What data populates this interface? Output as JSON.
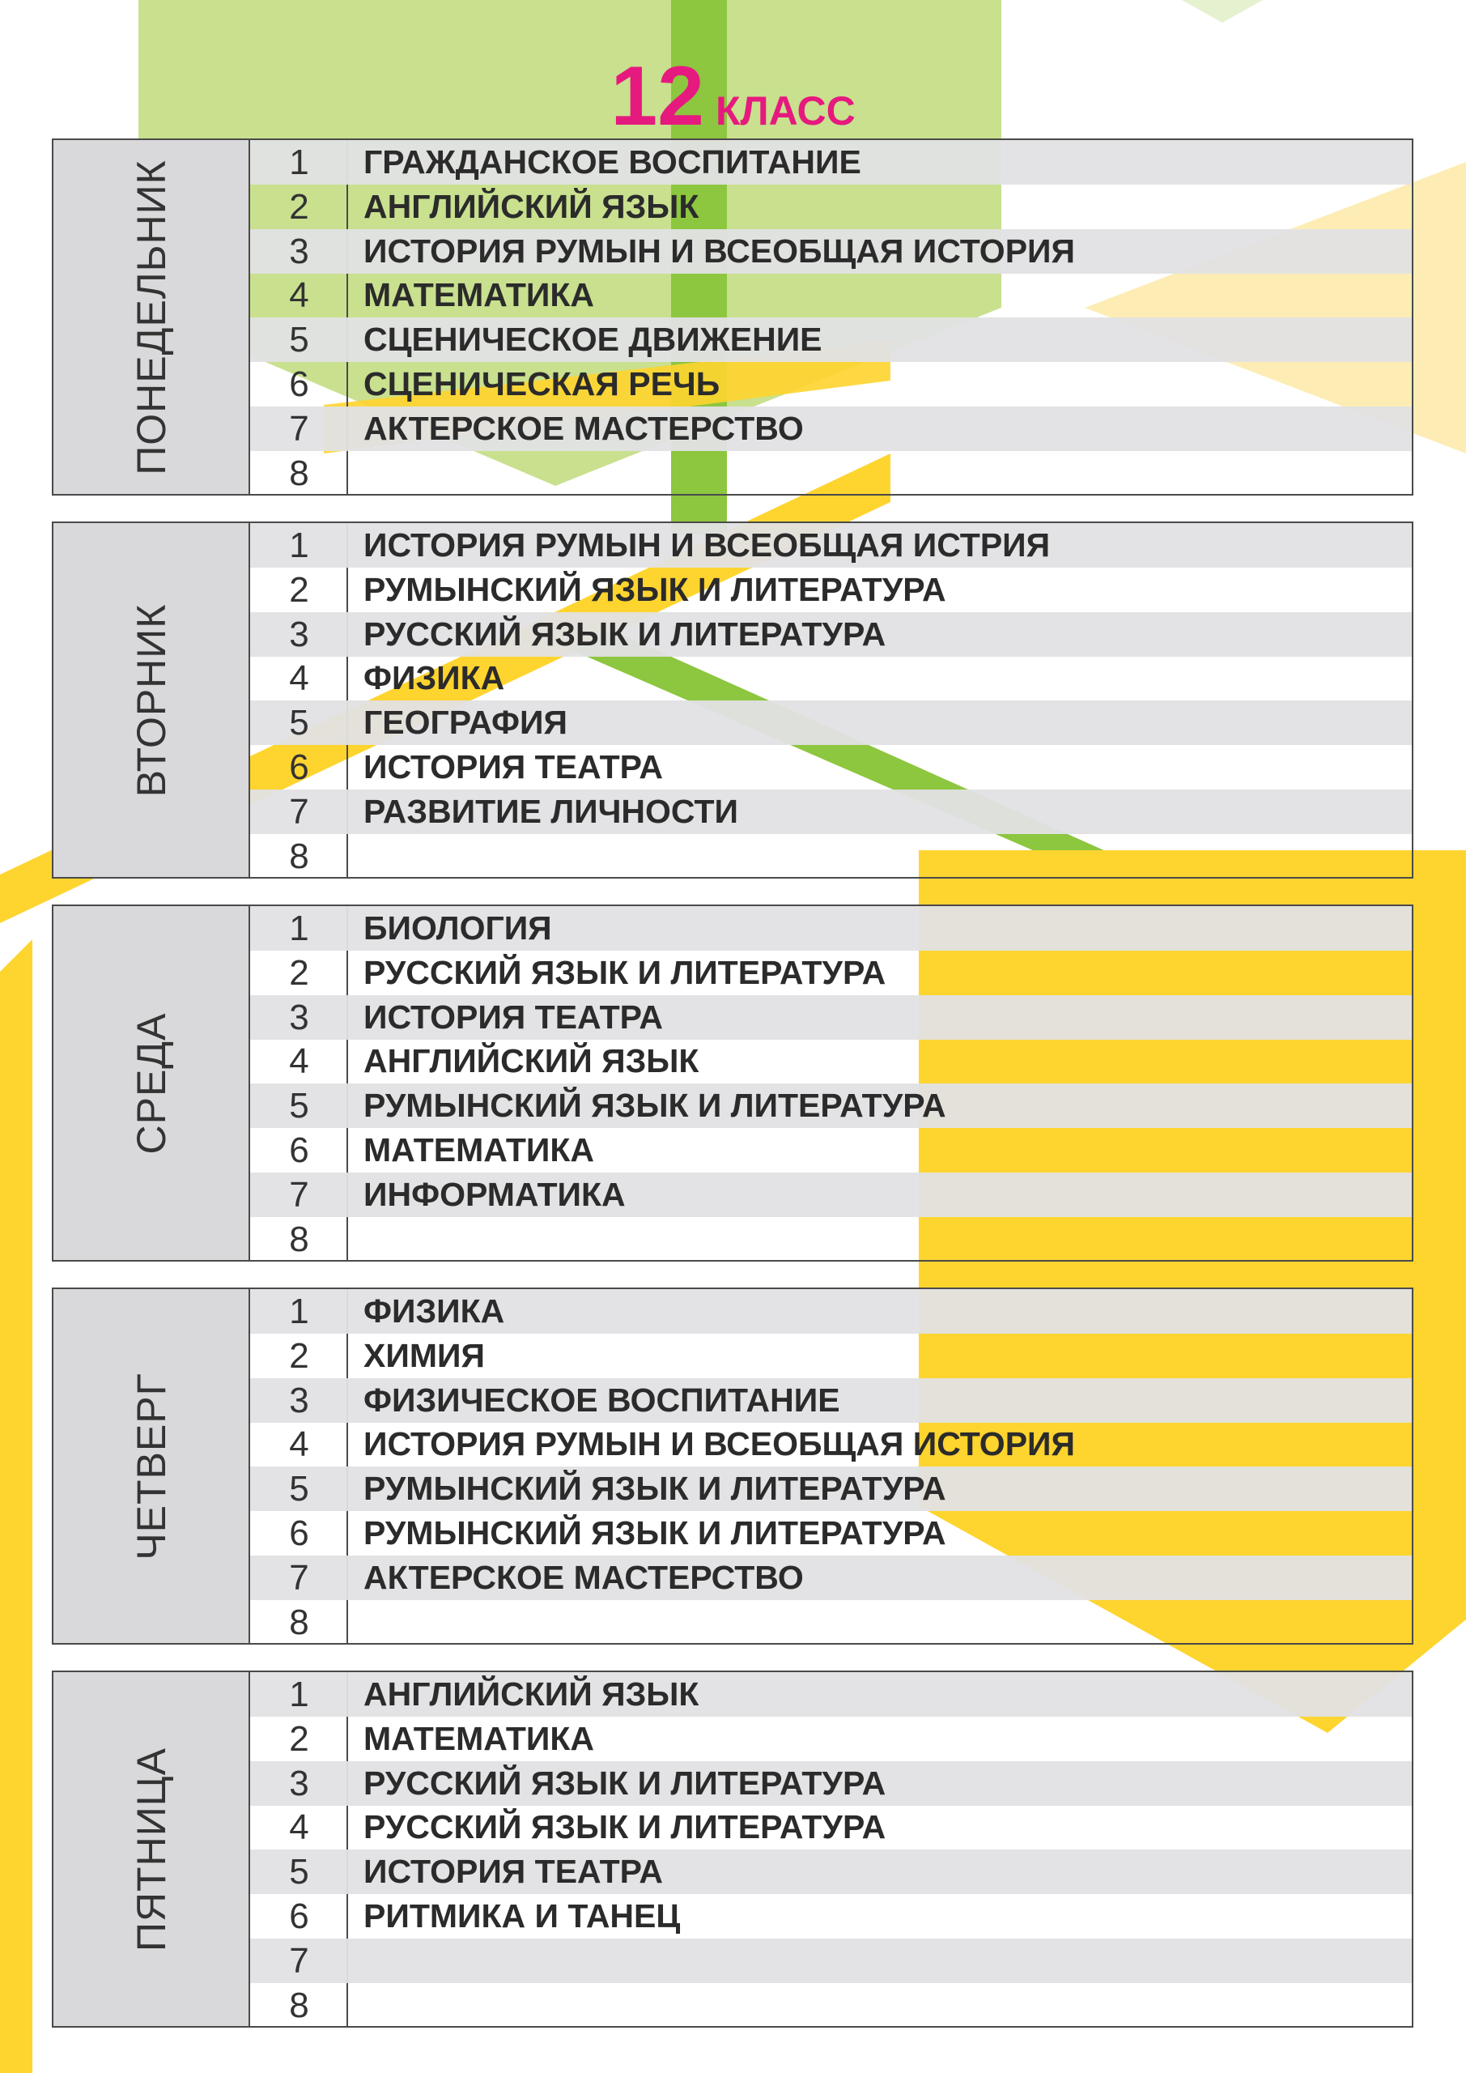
{
  "header": {
    "number": "12",
    "label": "КЛАСС"
  },
  "days": [
    {
      "name": "ПОНЕДЕЛЬНИК",
      "lessons": [
        {
          "num": 1,
          "subject": "ГРАЖДАНСКОЕ ВОСПИТАНИЕ"
        },
        {
          "num": 2,
          "subject": "АНГЛИЙСКИЙ ЯЗЫК"
        },
        {
          "num": 3,
          "subject": "ИСТОРИЯ РУМЫН И ВСЕОБЩАЯ ИСТОРИЯ"
        },
        {
          "num": 4,
          "subject": "МАТЕМАТИКА"
        },
        {
          "num": 5,
          "subject": "СЦЕНИЧЕСКОЕ ДВИЖЕНИЕ"
        },
        {
          "num": 6,
          "subject": "СЦЕНИЧЕСКАЯ РЕЧЬ"
        },
        {
          "num": 7,
          "subject": "АКТЕРСКОЕ МАСТЕРСТВО"
        },
        {
          "num": 8
        }
      ]
    },
    {
      "name": "ВТОРНИК",
      "lessons": [
        {
          "num": 1,
          "subject": "ИСТОРИЯ РУМЫН И ВСЕОБЩАЯ ИСТРИЯ"
        },
        {
          "num": 2,
          "subject": "РУМЫНСКИЙ ЯЗЫК И ЛИТЕРАТУРА"
        },
        {
          "num": 3,
          "subject": "РУССКИЙ ЯЗЫК И ЛИТЕРАТУРА"
        },
        {
          "num": 4,
          "subject": "ФИЗИКА"
        },
        {
          "num": 5,
          "subject": "ГЕОГРАФИЯ"
        },
        {
          "num": 6,
          "subject": "ИСТОРИЯ ТЕАТРА"
        },
        {
          "num": 7,
          "subject": "РАЗВИТИЕ ЛИЧНОСТИ"
        },
        {
          "num": 8
        }
      ]
    },
    {
      "name": "СРЕДА",
      "lessons": [
        {
          "num": 1,
          "subject": "БИОЛОГИЯ"
        },
        {
          "num": 2,
          "subject": "РУССКИЙ ЯЗЫК И ЛИТЕРАТУРА"
        },
        {
          "num": 3,
          "subject": "ИСТОРИЯ ТЕАТРА"
        },
        {
          "num": 4,
          "subject": "АНГЛИЙСКИЙ ЯЗЫК"
        },
        {
          "num": 5,
          "subject": "РУМЫНСКИЙ ЯЗЫК И ЛИТЕРАТУРА"
        },
        {
          "num": 6,
          "subject": "МАТЕМАТИКА"
        },
        {
          "num": 7,
          "subject": "ИНФОРМАТИКА"
        },
        {
          "num": 8
        }
      ]
    },
    {
      "name": "ЧЕТВЕРГ",
      "lessons": [
        {
          "num": 1,
          "subject": "ФИЗИКА"
        },
        {
          "num": 2,
          "subject": "ХИМИЯ"
        },
        {
          "num": 3,
          "subject": "ФИЗИЧЕСКОЕ ВОСПИТАНИЕ"
        },
        {
          "num": 4,
          "subject": "ИСТОРИЯ РУМЫН И ВСЕОБЩАЯ ИСТОРИЯ"
        },
        {
          "num": 5,
          "subject": "РУМЫНСКИЙ ЯЗЫК И ЛИТЕРАТУРА"
        },
        {
          "num": 6,
          "subject": "РУМЫНСКИЙ ЯЗЫК И ЛИТЕРАТУРА"
        },
        {
          "num": 7,
          "subject": "АКТЕРСКОЕ МАСТЕРСТВО"
        },
        {
          "num": 8
        }
      ]
    },
    {
      "name": "ПЯТНИЦА",
      "lessons": [
        {
          "num": 1,
          "subject": "АНГЛИЙСКИЙ ЯЗЫК"
        },
        {
          "num": 2,
          "subject": "МАТЕМАТИКА"
        },
        {
          "num": 3,
          "subject": "РУССКИЙ ЯЗЫК И ЛИТЕРАТУРА"
        },
        {
          "num": 4,
          "subject": "РУССКИЙ ЯЗЫК И ЛИТЕРАТУРА"
        },
        {
          "num": 5,
          "subject": "ИСТОРИЯ ТЕАТРА"
        },
        {
          "num": 6,
          "subject": "РИТМИКА И ТАНЕЦ"
        },
        {
          "num": 7
        },
        {
          "num": 8
        }
      ]
    }
  ]
}
